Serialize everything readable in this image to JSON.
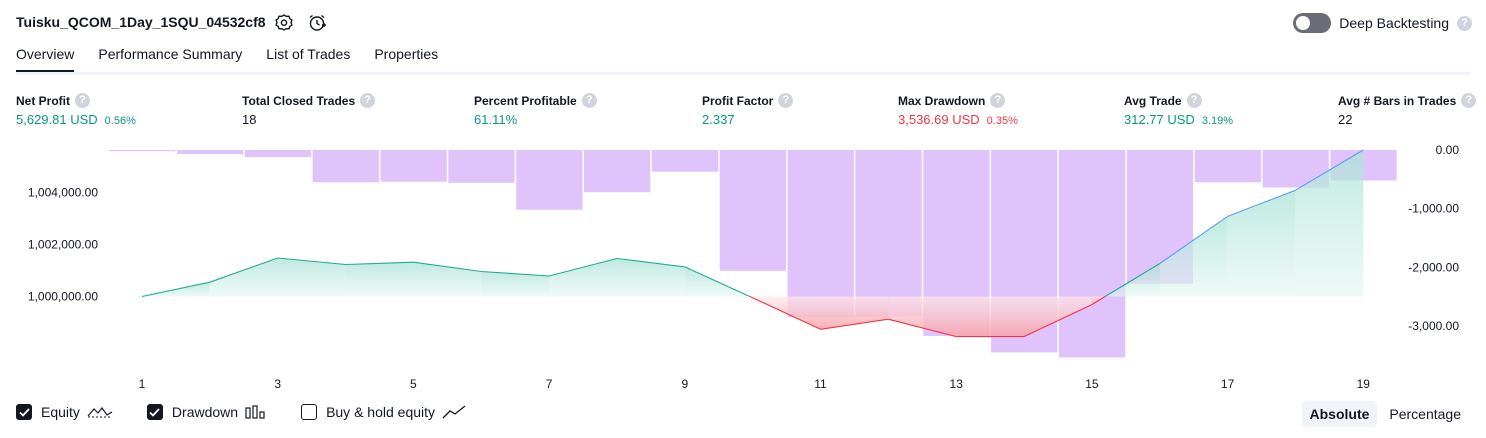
{
  "header": {
    "title": "Tuisku_QCOM_1Day_1SQU_04532cf8",
    "deep_backtesting_label": "Deep Backtesting",
    "deep_backtesting_enabled": false,
    "help_glyph": "?"
  },
  "tabs": [
    {
      "label": "Overview",
      "active": true
    },
    {
      "label": "Performance Summary",
      "active": false
    },
    {
      "label": "List of Trades",
      "active": false
    },
    {
      "label": "Properties",
      "active": false
    }
  ],
  "metrics": {
    "net_profit": {
      "label": "Net Profit",
      "value": "5,629.81 USD",
      "pct": "0.56%"
    },
    "total_closed_trades": {
      "label": "Total Closed Trades",
      "value": "18"
    },
    "percent_profitable": {
      "label": "Percent Profitable",
      "value": "61.11%"
    },
    "profit_factor": {
      "label": "Profit Factor",
      "value": "2.337"
    },
    "max_drawdown": {
      "label": "Max Drawdown",
      "value": "3,536.69 USD",
      "pct": "0.35%"
    },
    "avg_trade": {
      "label": "Avg Trade",
      "value": "312.77 USD",
      "pct": "3.19%"
    },
    "avg_bars": {
      "label": "Avg # Bars in Trades",
      "value": "22"
    }
  },
  "colors": {
    "positive": "#089981",
    "negative": "#f23645",
    "drawdown_bar": "#e1c3fc",
    "equity_line": "#22ab94",
    "equity_fill": "#cdeee6",
    "drawdown_fill": "#f7a8ae",
    "buy_hold_line": "#5b9cf6"
  },
  "chart_data": {
    "type": "area",
    "x": [
      1,
      2,
      3,
      4,
      5,
      6,
      7,
      8,
      9,
      10,
      11,
      12,
      13,
      14,
      15,
      16,
      17,
      18,
      19
    ],
    "x_tick_labels": [
      "1",
      "3",
      "5",
      "7",
      "9",
      "11",
      "13",
      "15",
      "17",
      "19"
    ],
    "equity": {
      "baseline": 1000000,
      "values": [
        1000000,
        1000550,
        1001480,
        1001230,
        1001320,
        1000960,
        1000790,
        1001460,
        1001140,
        999950,
        998740,
        999130,
        998460,
        998460,
        999690,
        1001270,
        1003080,
        1004080,
        1005629.81
      ]
    },
    "drawdown": {
      "values": [
        -20,
        -70,
        -120,
        -550,
        -540,
        -560,
        -1020,
        -720,
        -370,
        -2060,
        -2850,
        -2840,
        -3170,
        -3450,
        -3536.69,
        -2280,
        -550,
        -640,
        -520
      ]
    },
    "left_axis": {
      "ticks": [
        1000000,
        1002000,
        1004000
      ],
      "tick_labels": [
        "1,000,000.00",
        "1,002,000.00",
        "1,004,000.00"
      ],
      "range": [
        997600,
        1005629.81
      ]
    },
    "right_axis": {
      "ticks": [
        0,
        -1000,
        -2000,
        -3000
      ],
      "tick_labels": [
        "0.00",
        "-1,000.00",
        "-2,000.00",
        "-3,000.00"
      ],
      "range": [
        -3580,
        0
      ]
    }
  },
  "legend": {
    "equity": {
      "label": "Equity",
      "checked": true
    },
    "drawdown": {
      "label": "Drawdown",
      "checked": true
    },
    "buy_hold": {
      "label": "Buy & hold equity",
      "checked": false
    }
  },
  "view_toggle": {
    "absolute": "Absolute",
    "percentage": "Percentage",
    "active": "absolute"
  }
}
